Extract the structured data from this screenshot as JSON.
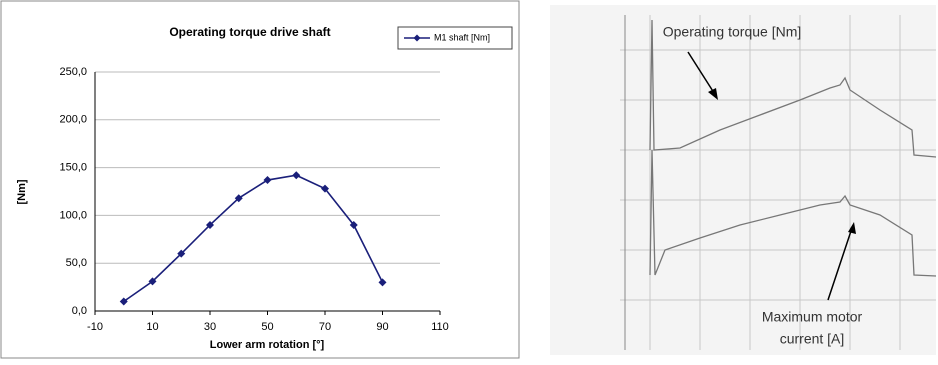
{
  "chart_data": {
    "type": "line",
    "title": "Operating torque drive shaft",
    "x_label": "Lower arm rotation [°]",
    "y_label": "[Nm]",
    "x": [
      0,
      10,
      20,
      30,
      40,
      50,
      60,
      70,
      80,
      90
    ],
    "series": [
      {
        "name": "M1 shaft [Nm]",
        "color": "#1a1f7a",
        "values": [
          10,
          31,
          60,
          90,
          118,
          137,
          142,
          128,
          90,
          30
        ]
      }
    ],
    "xlim": [
      -10,
      110
    ],
    "xticks": [
      -10,
      10,
      30,
      50,
      70,
      90,
      110
    ],
    "ylim": [
      0,
      250
    ],
    "yticks": [
      {
        "value": 0,
        "label": "0,0"
      },
      {
        "value": 50,
        "label": "50,0"
      },
      {
        "value": 100,
        "label": "100,0"
      },
      {
        "value": 150,
        "label": "150,0"
      },
      {
        "value": 200,
        "label": "200,0"
      },
      {
        "value": 250,
        "label": "250,0"
      }
    ],
    "grid": true,
    "legend": "top-right"
  },
  "scan": {
    "annotations": [
      "Operating torque [Nm]",
      "Maximum motor",
      "current [A]"
    ]
  }
}
